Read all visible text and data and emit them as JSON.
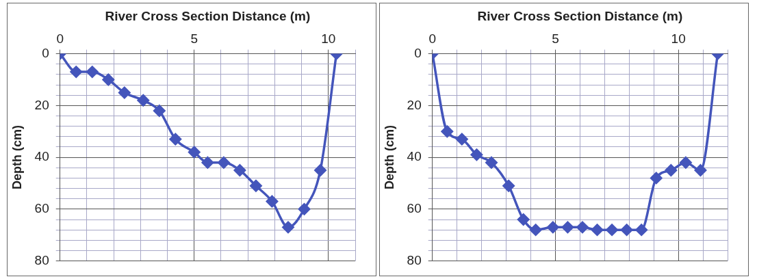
{
  "chart_data": [
    {
      "type": "line",
      "xlabel": "River Cross Section Distance (m)",
      "ylabel": "Depth (cm)",
      "grid": true,
      "marker": "diamond",
      "line_style": "solid",
      "x": [
        0,
        0.6,
        1.2,
        1.8,
        2.4,
        3.1,
        3.7,
        4.3,
        5.0,
        5.5,
        6.1,
        6.7,
        7.3,
        7.9,
        8.5,
        9.1,
        9.7,
        10.3
      ],
      "series": [
        {
          "color": "#4455bb",
          "values": [
            0,
            7,
            7,
            10,
            15,
            18,
            22,
            33,
            38,
            42,
            42,
            45,
            51,
            57,
            67,
            60,
            45,
            0
          ]
        }
      ],
      "xlim": [
        0,
        11
      ],
      "xticks": [
        0,
        {
          "value": 1,
          "label": null
        },
        {
          "value": 2,
          "label": null
        },
        {
          "value": 3,
          "label": null
        },
        {
          "value": 4,
          "label": null
        },
        5,
        {
          "value": 6,
          "label": null
        },
        {
          "value": 7,
          "label": null
        },
        {
          "value": 8,
          "label": null
        },
        {
          "value": 9,
          "label": null
        },
        10,
        {
          "value": 11,
          "label": null
        }
      ],
      "ylim": [
        80,
        0
      ],
      "yticks": [
        0,
        {
          "value": 4,
          "label": null
        },
        {
          "value": 8,
          "label": null
        },
        {
          "value": 12,
          "label": null
        },
        {
          "value": 16,
          "label": null
        },
        20,
        {
          "value": 24,
          "label": null
        },
        {
          "value": 28,
          "label": null
        },
        {
          "value": 32,
          "label": null
        },
        {
          "value": 36,
          "label": null
        },
        40,
        {
          "value": 44,
          "label": null
        },
        {
          "value": 48,
          "label": null
        },
        {
          "value": 52,
          "label": null
        },
        {
          "value": 56,
          "label": null
        },
        60,
        {
          "value": 64,
          "label": null
        },
        {
          "value": 68,
          "label": null
        },
        {
          "value": 72,
          "label": null
        },
        {
          "value": 76,
          "label": null
        },
        80
      ]
    },
    {
      "type": "line",
      "xlabel": "River Cross Section Distance (m)",
      "ylabel": "Depth (cm)",
      "grid": true,
      "marker": "diamond",
      "line_style": "solid",
      "x": [
        0,
        0.6,
        1.2,
        1.8,
        2.4,
        3.1,
        3.7,
        4.2,
        4.9,
        5.5,
        6.1,
        6.7,
        7.3,
        7.9,
        8.5,
        9.1,
        9.7,
        10.3,
        10.9,
        11.6
      ],
      "series": [
        {
          "color": "#4455bb",
          "values": [
            0,
            30,
            33,
            39,
            42,
            51,
            64,
            68,
            67,
            67,
            67,
            68,
            68,
            68,
            68,
            48,
            45,
            42,
            45,
            0
          ]
        }
      ],
      "xlim": [
        0,
        12
      ],
      "xticks": [
        0,
        {
          "value": 1,
          "label": null
        },
        {
          "value": 2,
          "label": null
        },
        {
          "value": 3,
          "label": null
        },
        {
          "value": 4,
          "label": null
        },
        5,
        {
          "value": 6,
          "label": null
        },
        {
          "value": 7,
          "label": null
        },
        {
          "value": 8,
          "label": null
        },
        {
          "value": 9,
          "label": null
        },
        10,
        {
          "value": 11,
          "label": null
        },
        {
          "value": 12,
          "label": null
        }
      ],
      "ylim": [
        80,
        0
      ],
      "yticks": [
        0,
        {
          "value": 4,
          "label": null
        },
        {
          "value": 8,
          "label": null
        },
        {
          "value": 12,
          "label": null
        },
        {
          "value": 16,
          "label": null
        },
        20,
        {
          "value": 24,
          "label": null
        },
        {
          "value": 28,
          "label": null
        },
        {
          "value": 32,
          "label": null
        },
        {
          "value": 36,
          "label": null
        },
        40,
        {
          "value": 44,
          "label": null
        },
        {
          "value": 48,
          "label": null
        },
        {
          "value": 52,
          "label": null
        },
        {
          "value": 56,
          "label": null
        },
        60,
        {
          "value": 64,
          "label": null
        },
        {
          "value": 68,
          "label": null
        },
        {
          "value": 72,
          "label": null
        },
        {
          "value": 76,
          "label": null
        },
        80
      ]
    }
  ]
}
